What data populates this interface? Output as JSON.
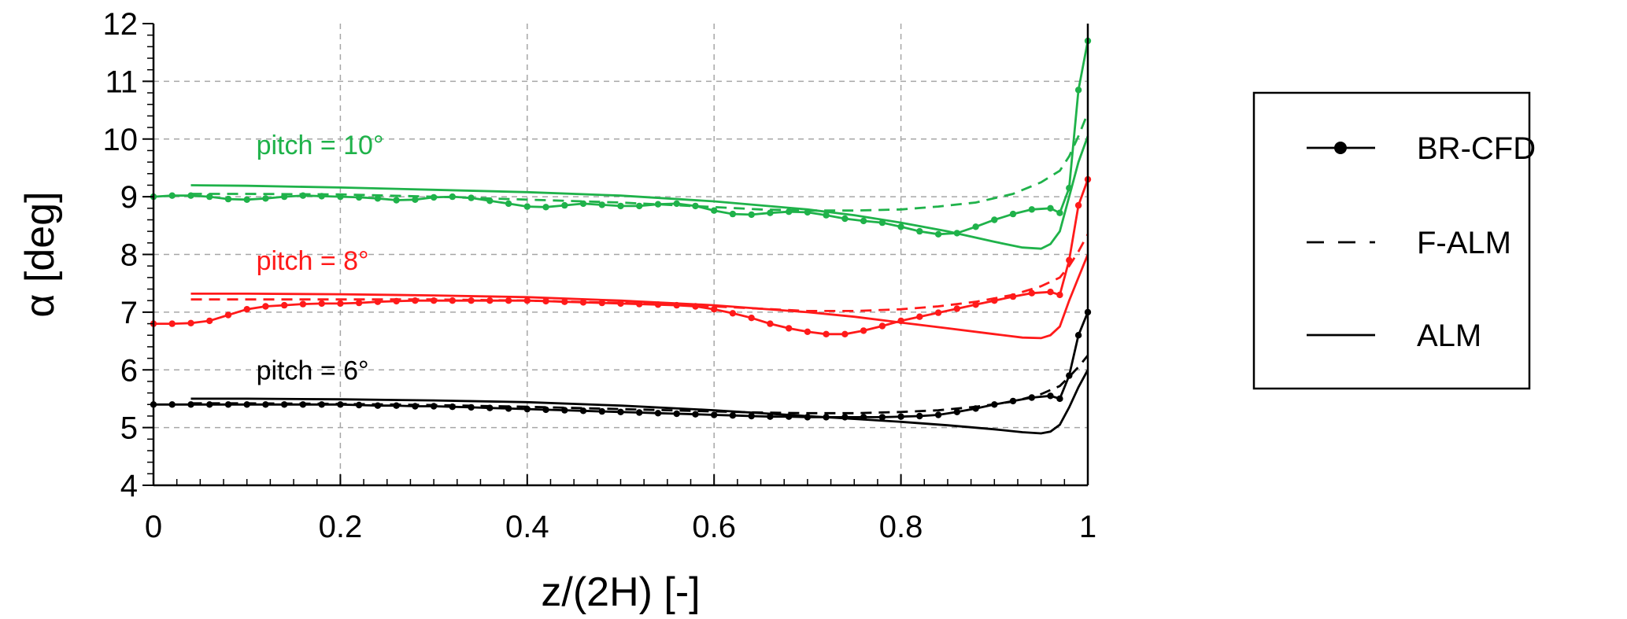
{
  "chart_data": {
    "type": "line",
    "xlabel": "z/(2H) [-]",
    "ylabel": "α [deg]",
    "xlim": [
      0,
      1
    ],
    "ylim": [
      4,
      12
    ],
    "xticks": [
      "0",
      "0.2",
      "0.4",
      "0.6",
      "0.8",
      "1"
    ],
    "yticks": [
      "4",
      "5",
      "6",
      "7",
      "8",
      "9",
      "10",
      "11",
      "12"
    ],
    "grid": "dashed, major",
    "legend": {
      "placement": "right",
      "entries": [
        {
          "label": "BR-CFD",
          "style": "solid-marker"
        },
        {
          "label": "F-ALM",
          "style": "dashed"
        },
        {
          "label": "ALM",
          "style": "solid"
        }
      ]
    },
    "annotations": [
      {
        "text": "pitch = 10°",
        "color": "#1fb24a",
        "x": 0.11,
        "y": 9.9
      },
      {
        "text": "pitch = 8°",
        "color": "#ff1a1a",
        "x": 0.11,
        "y": 7.9
      },
      {
        "text": "pitch = 6°",
        "color": "#000000",
        "x": 0.11,
        "y": 6.0
      }
    ],
    "series": [
      {
        "group": "pitch = 10°",
        "model": "BR-CFD",
        "color": "#1fb24a",
        "style": "solid-marker",
        "x": [
          0,
          0.02,
          0.04,
          0.06,
          0.08,
          0.1,
          0.12,
          0.14,
          0.16,
          0.18,
          0.2,
          0.22,
          0.24,
          0.26,
          0.28,
          0.3,
          0.32,
          0.34,
          0.36,
          0.38,
          0.4,
          0.42,
          0.44,
          0.46,
          0.48,
          0.5,
          0.52,
          0.54,
          0.56,
          0.58,
          0.6,
          0.62,
          0.64,
          0.66,
          0.68,
          0.7,
          0.72,
          0.74,
          0.76,
          0.78,
          0.8,
          0.82,
          0.84,
          0.86,
          0.88,
          0.9,
          0.92,
          0.94,
          0.96,
          0.97,
          0.98,
          0.99,
          1.0
        ],
        "y": [
          9.0,
          9.02,
          9.02,
          9.0,
          8.96,
          8.95,
          8.97,
          9.0,
          9.02,
          9.01,
          9.0,
          8.99,
          8.97,
          8.94,
          8.95,
          8.99,
          9.0,
          8.98,
          8.93,
          8.88,
          8.83,
          8.82,
          8.85,
          8.88,
          8.86,
          8.84,
          8.84,
          8.87,
          8.88,
          8.84,
          8.76,
          8.7,
          8.69,
          8.72,
          8.74,
          8.73,
          8.68,
          8.62,
          8.58,
          8.55,
          8.48,
          8.4,
          8.35,
          8.37,
          8.48,
          8.6,
          8.7,
          8.78,
          8.8,
          8.72,
          9.15,
          10.85,
          11.7
        ]
      },
      {
        "group": "pitch = 10°",
        "model": "F-ALM",
        "color": "#1fb24a",
        "style": "dashed",
        "x": [
          0.04,
          0.1,
          0.2,
          0.3,
          0.4,
          0.5,
          0.6,
          0.65,
          0.7,
          0.75,
          0.8,
          0.84,
          0.88,
          0.92,
          0.95,
          0.97,
          0.98,
          0.99,
          1.0
        ],
        "y": [
          9.05,
          9.05,
          9.04,
          9.0,
          8.95,
          8.9,
          8.82,
          8.78,
          8.76,
          8.76,
          8.78,
          8.83,
          8.9,
          9.05,
          9.25,
          9.45,
          9.7,
          10.05,
          10.45
        ]
      },
      {
        "group": "pitch = 10°",
        "model": "ALM",
        "color": "#1fb24a",
        "style": "solid",
        "x": [
          0.04,
          0.1,
          0.2,
          0.3,
          0.4,
          0.5,
          0.6,
          0.7,
          0.75,
          0.8,
          0.85,
          0.9,
          0.93,
          0.95,
          0.96,
          0.97,
          0.98,
          0.99,
          1.0
        ],
        "y": [
          9.2,
          9.19,
          9.16,
          9.12,
          9.08,
          9.02,
          8.92,
          8.78,
          8.68,
          8.55,
          8.4,
          8.22,
          8.12,
          8.1,
          8.18,
          8.4,
          9.0,
          9.6,
          10.05
        ]
      },
      {
        "group": "pitch = 8°",
        "model": "BR-CFD",
        "color": "#ff1a1a",
        "style": "solid-marker",
        "x": [
          0,
          0.02,
          0.04,
          0.06,
          0.08,
          0.1,
          0.12,
          0.14,
          0.16,
          0.18,
          0.2,
          0.22,
          0.24,
          0.26,
          0.28,
          0.3,
          0.32,
          0.34,
          0.36,
          0.38,
          0.4,
          0.42,
          0.44,
          0.46,
          0.48,
          0.5,
          0.52,
          0.54,
          0.56,
          0.58,
          0.6,
          0.62,
          0.64,
          0.66,
          0.68,
          0.7,
          0.72,
          0.74,
          0.76,
          0.78,
          0.8,
          0.82,
          0.84,
          0.86,
          0.88,
          0.9,
          0.92,
          0.94,
          0.96,
          0.97,
          0.98,
          0.99,
          1.0
        ],
        "y": [
          6.8,
          6.8,
          6.81,
          6.85,
          6.95,
          7.05,
          7.1,
          7.12,
          7.14,
          7.15,
          7.15,
          7.16,
          7.18,
          7.19,
          7.2,
          7.2,
          7.2,
          7.2,
          7.2,
          7.2,
          7.2,
          7.19,
          7.18,
          7.17,
          7.16,
          7.15,
          7.14,
          7.13,
          7.12,
          7.1,
          7.05,
          6.98,
          6.9,
          6.8,
          6.72,
          6.66,
          6.62,
          6.62,
          6.68,
          6.76,
          6.85,
          6.92,
          6.99,
          7.06,
          7.13,
          7.2,
          7.27,
          7.33,
          7.35,
          7.3,
          7.9,
          8.85,
          9.3
        ]
      },
      {
        "group": "pitch = 8°",
        "model": "F-ALM",
        "color": "#ff1a1a",
        "style": "dashed",
        "x": [
          0.04,
          0.1,
          0.2,
          0.3,
          0.4,
          0.5,
          0.6,
          0.65,
          0.7,
          0.75,
          0.8,
          0.84,
          0.88,
          0.92,
          0.95,
          0.97,
          0.98,
          0.99,
          1.0
        ],
        "y": [
          7.22,
          7.22,
          7.22,
          7.22,
          7.2,
          7.16,
          7.1,
          7.06,
          7.02,
          7.02,
          7.05,
          7.1,
          7.18,
          7.3,
          7.45,
          7.6,
          7.8,
          8.05,
          8.35
        ]
      },
      {
        "group": "pitch = 8°",
        "model": "ALM",
        "color": "#ff1a1a",
        "style": "solid",
        "x": [
          0.04,
          0.1,
          0.2,
          0.3,
          0.4,
          0.5,
          0.6,
          0.7,
          0.75,
          0.8,
          0.85,
          0.9,
          0.93,
          0.95,
          0.96,
          0.97,
          0.98,
          0.99,
          1.0
        ],
        "y": [
          7.32,
          7.32,
          7.31,
          7.29,
          7.26,
          7.2,
          7.12,
          7.0,
          6.92,
          6.82,
          6.72,
          6.62,
          6.56,
          6.55,
          6.6,
          6.75,
          7.2,
          7.6,
          8.0
        ]
      },
      {
        "group": "pitch = 6°",
        "model": "BR-CFD",
        "color": "#000000",
        "style": "solid-marker",
        "x": [
          0,
          0.02,
          0.04,
          0.06,
          0.08,
          0.1,
          0.12,
          0.14,
          0.16,
          0.18,
          0.2,
          0.22,
          0.24,
          0.26,
          0.28,
          0.3,
          0.32,
          0.34,
          0.36,
          0.38,
          0.4,
          0.42,
          0.44,
          0.46,
          0.48,
          0.5,
          0.52,
          0.54,
          0.56,
          0.58,
          0.6,
          0.62,
          0.64,
          0.66,
          0.68,
          0.7,
          0.72,
          0.74,
          0.76,
          0.78,
          0.8,
          0.82,
          0.84,
          0.86,
          0.88,
          0.9,
          0.92,
          0.94,
          0.96,
          0.97,
          0.98,
          0.99,
          1.0
        ],
        "y": [
          5.4,
          5.4,
          5.4,
          5.4,
          5.4,
          5.4,
          5.4,
          5.4,
          5.4,
          5.4,
          5.4,
          5.39,
          5.38,
          5.38,
          5.37,
          5.37,
          5.36,
          5.35,
          5.34,
          5.33,
          5.32,
          5.31,
          5.3,
          5.29,
          5.28,
          5.27,
          5.26,
          5.25,
          5.24,
          5.23,
          5.22,
          5.21,
          5.2,
          5.19,
          5.19,
          5.18,
          5.18,
          5.18,
          5.18,
          5.18,
          5.19,
          5.2,
          5.22,
          5.27,
          5.33,
          5.4,
          5.46,
          5.52,
          5.55,
          5.5,
          5.9,
          6.6,
          7.0
        ]
      },
      {
        "group": "pitch = 6°",
        "model": "F-ALM",
        "color": "#000000",
        "style": "dashed",
        "x": [
          0.04,
          0.1,
          0.2,
          0.3,
          0.4,
          0.5,
          0.6,
          0.65,
          0.7,
          0.75,
          0.8,
          0.84,
          0.88,
          0.92,
          0.95,
          0.97,
          0.98,
          0.99,
          1.0
        ],
        "y": [
          5.42,
          5.42,
          5.41,
          5.39,
          5.36,
          5.32,
          5.28,
          5.26,
          5.25,
          5.25,
          5.27,
          5.3,
          5.36,
          5.45,
          5.58,
          5.72,
          5.88,
          6.05,
          6.25
        ]
      },
      {
        "group": "pitch = 6°",
        "model": "ALM",
        "color": "#000000",
        "style": "solid",
        "x": [
          0.04,
          0.1,
          0.2,
          0.3,
          0.4,
          0.5,
          0.6,
          0.7,
          0.75,
          0.8,
          0.85,
          0.9,
          0.93,
          0.95,
          0.96,
          0.97,
          0.98,
          0.99,
          1.0
        ],
        "y": [
          5.5,
          5.5,
          5.49,
          5.47,
          5.44,
          5.38,
          5.3,
          5.2,
          5.15,
          5.1,
          5.04,
          4.97,
          4.92,
          4.9,
          4.93,
          5.05,
          5.35,
          5.7,
          6.0
        ]
      }
    ]
  }
}
